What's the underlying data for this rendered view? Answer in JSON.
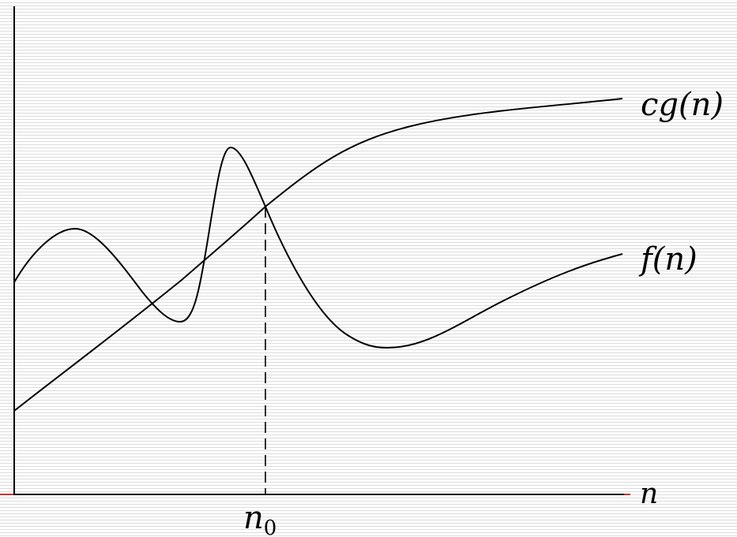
{
  "diagram": {
    "x_axis_label": "n",
    "threshold_label": "n",
    "threshold_subscript": "0",
    "curves": [
      {
        "id": "cg",
        "label": "cg(n)"
      },
      {
        "id": "f",
        "label": "f(n)"
      }
    ],
    "colors": {
      "ink": "#000000",
      "accent_tick": "#cc3333",
      "background_stripe": "#dcdcdc"
    }
  }
}
